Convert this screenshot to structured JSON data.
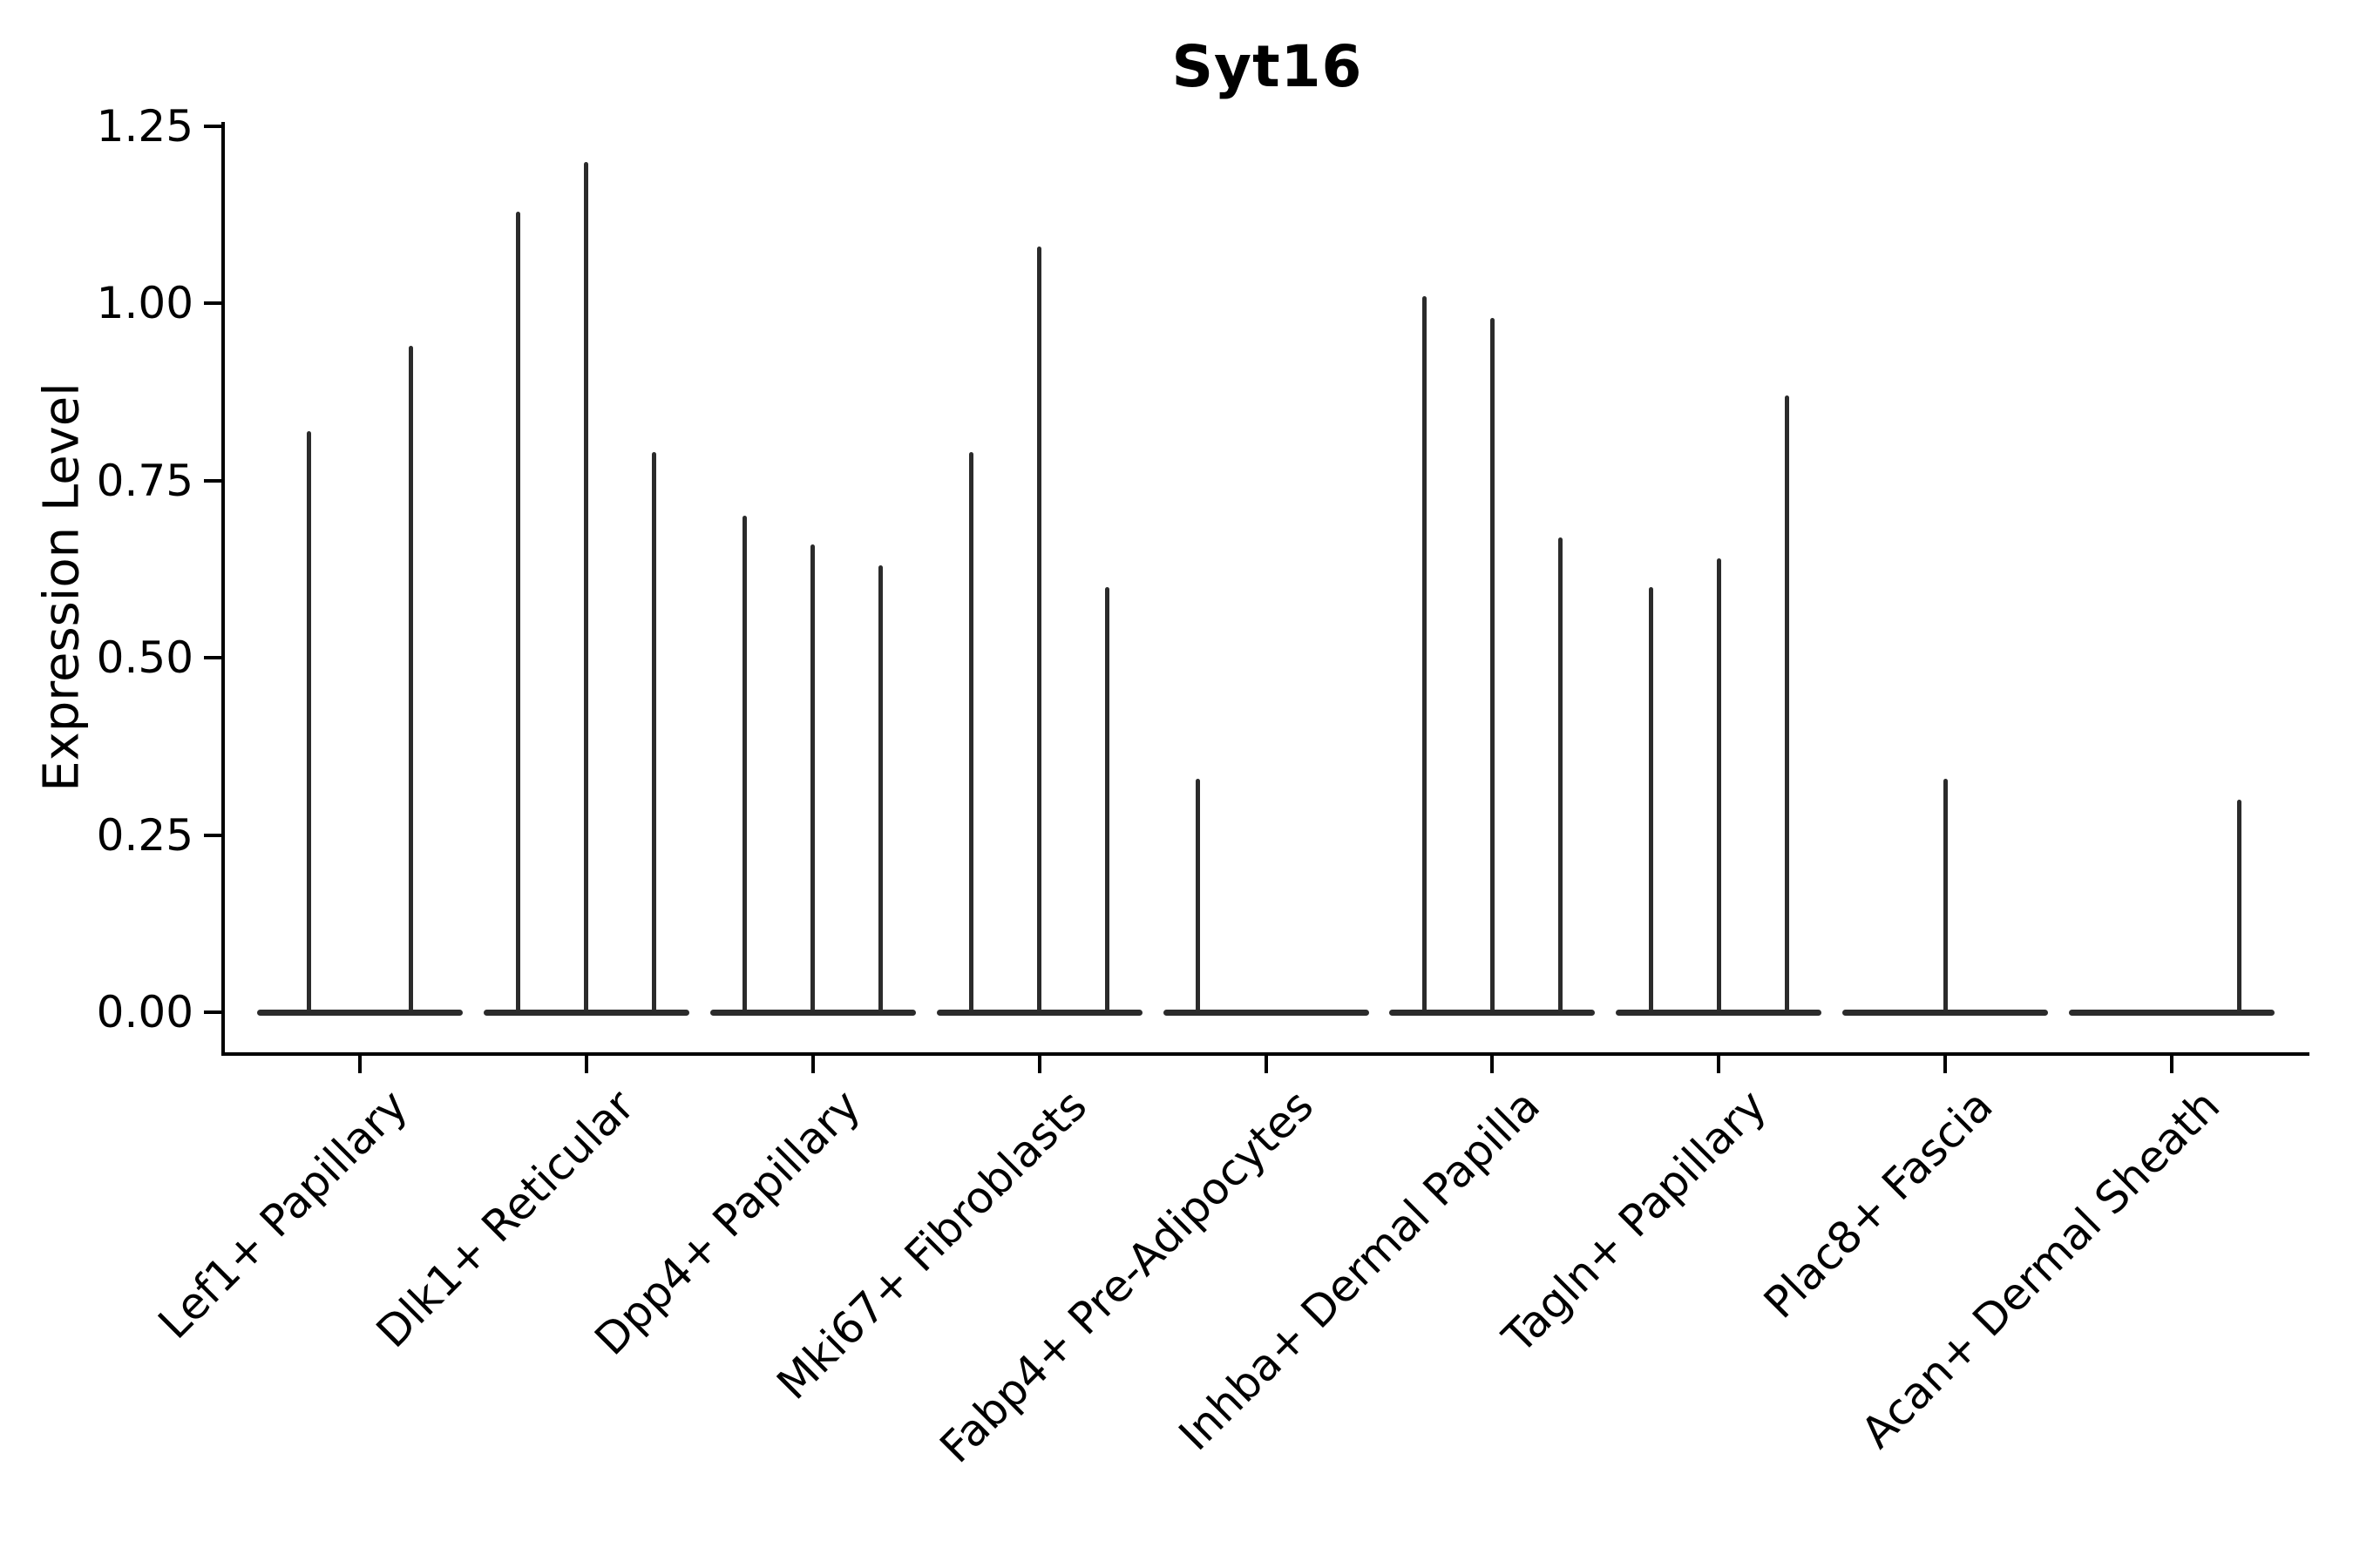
{
  "figure": {
    "title": "Syt16",
    "ylabel": "Expression Level",
    "xlabel": ""
  },
  "chart_data": {
    "type": "violin",
    "title": "Syt16",
    "subtitle": "",
    "xlabel": "",
    "ylabel": "Expression Level",
    "ylim": [
      -0.06,
      1.26
    ],
    "grid": false,
    "legend": "none",
    "yticks": {
      "values": [
        0.0,
        0.25,
        0.5,
        0.75,
        1.0,
        1.25
      ],
      "labels": [
        "0.00",
        "0.25",
        "0.50",
        "0.75",
        "1.00",
        "1.25"
      ]
    },
    "categories": [
      "Lef1+ Papillary",
      "Dlk1+ Reticular",
      "Dpp4+ Papillary",
      "Mki67+ Fibroblasts",
      "Fabp4+ Pre-Adipocytes",
      "Inhba+ Dermal Papilla",
      "Tagln+ Papillary",
      "Plac8+ Fascia",
      "Acan+ Dermal Sheath"
    ],
    "description": "Collapsed violins: nearly all cells at expression 0 (flat baseline across each category) with thin vertical density spikes reaching the maximum expression value of rare positive cells. offset_frac is the violin position within the category (fraction of category spacing).",
    "groups": [
      {
        "category": "Lef1+ Papillary",
        "violins": [
          {
            "offset_frac": -0.225,
            "peak": 0.82
          },
          {
            "offset_frac": 0.225,
            "peak": 0.94
          }
        ]
      },
      {
        "category": "Dlk1+ Reticular",
        "violins": [
          {
            "offset_frac": -0.3,
            "peak": 1.13
          },
          {
            "offset_frac": 0.0,
            "peak": 1.2
          },
          {
            "offset_frac": 0.3,
            "peak": 0.79
          }
        ]
      },
      {
        "category": "Dpp4+ Papillary",
        "violins": [
          {
            "offset_frac": -0.3,
            "peak": 0.7
          },
          {
            "offset_frac": 0.0,
            "peak": 0.66
          },
          {
            "offset_frac": 0.3,
            "peak": 0.63
          }
        ]
      },
      {
        "category": "Mki67+ Fibroblasts",
        "violins": [
          {
            "offset_frac": -0.3,
            "peak": 0.79
          },
          {
            "offset_frac": 0.0,
            "peak": 1.08
          },
          {
            "offset_frac": 0.3,
            "peak": 0.6
          }
        ]
      },
      {
        "category": "Fabp4+ Pre-Adipocytes",
        "violins": [
          {
            "offset_frac": -0.3,
            "peak": 0.33
          }
        ]
      },
      {
        "category": "Inhba+ Dermal Papilla",
        "violins": [
          {
            "offset_frac": -0.3,
            "peak": 1.01
          },
          {
            "offset_frac": 0.0,
            "peak": 0.98
          },
          {
            "offset_frac": 0.3,
            "peak": 0.67
          }
        ]
      },
      {
        "category": "Tagln+ Papillary",
        "violins": [
          {
            "offset_frac": -0.3,
            "peak": 0.6
          },
          {
            "offset_frac": 0.0,
            "peak": 0.64
          },
          {
            "offset_frac": 0.3,
            "peak": 0.87
          }
        ]
      },
      {
        "category": "Plac8+ Fascia",
        "violins": [
          {
            "offset_frac": 0.0,
            "peak": 0.33
          }
        ]
      },
      {
        "category": "Acan+ Dermal Sheath",
        "violins": [
          {
            "offset_frac": 0.3,
            "peak": 0.3
          }
        ]
      }
    ],
    "baseline_value": 0.0,
    "violin_color": "#2b2b2b",
    "axis_color": "#000000",
    "background_color": "#ffffff"
  }
}
